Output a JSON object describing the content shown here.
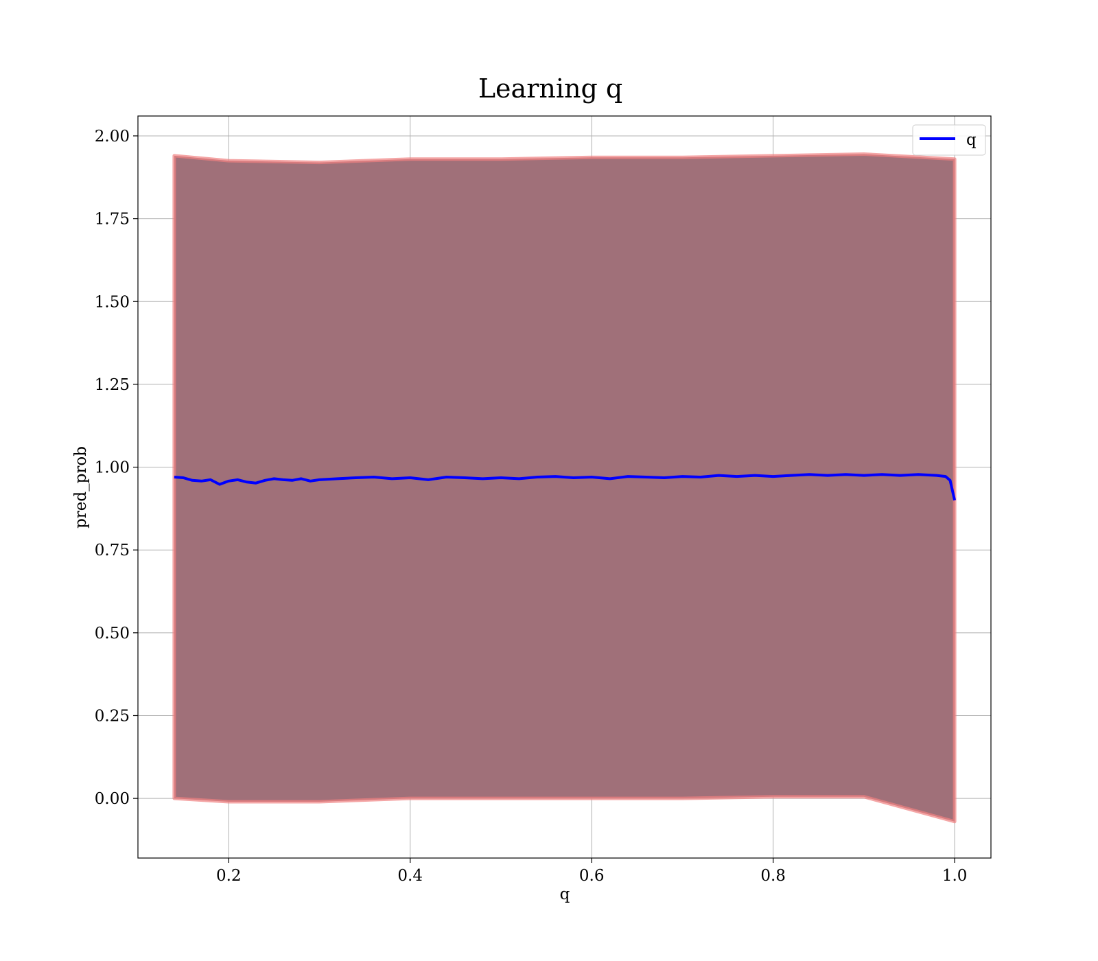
{
  "chart_data": {
    "type": "line",
    "title": "Learning q",
    "xlabel": "q",
    "ylabel": "pred_prob",
    "xlim": [
      0.1,
      1.04
    ],
    "ylim": [
      -0.18,
      2.06
    ],
    "xticks": [
      0.2,
      0.4,
      0.6,
      0.8,
      1.0
    ],
    "xtick_labels": [
      "0.2",
      "0.4",
      "0.6",
      "0.8",
      "1.0"
    ],
    "yticks": [
      0.0,
      0.25,
      0.5,
      0.75,
      1.0,
      1.25,
      1.5,
      1.75,
      2.0
    ],
    "ytick_labels": [
      "0.00",
      "0.25",
      "0.50",
      "0.75",
      "1.00",
      "1.25",
      "1.50",
      "1.75",
      "2.00"
    ],
    "grid": true,
    "legend": {
      "placement": "top-right",
      "entries": [
        {
          "label": "q",
          "color": "#0000ff"
        }
      ]
    },
    "series": [
      {
        "name": "q",
        "color": "#0000ff",
        "x": [
          0.14,
          0.15,
          0.16,
          0.17,
          0.18,
          0.19,
          0.2,
          0.21,
          0.22,
          0.23,
          0.24,
          0.25,
          0.26,
          0.27,
          0.28,
          0.29,
          0.3,
          0.32,
          0.34,
          0.36,
          0.38,
          0.4,
          0.42,
          0.44,
          0.46,
          0.48,
          0.5,
          0.52,
          0.54,
          0.56,
          0.58,
          0.6,
          0.62,
          0.64,
          0.66,
          0.68,
          0.7,
          0.72,
          0.74,
          0.76,
          0.78,
          0.8,
          0.82,
          0.84,
          0.86,
          0.88,
          0.9,
          0.92,
          0.94,
          0.96,
          0.98,
          0.99,
          0.995,
          1.0
        ],
        "y": [
          0.97,
          0.968,
          0.96,
          0.958,
          0.962,
          0.948,
          0.958,
          0.962,
          0.955,
          0.952,
          0.96,
          0.965,
          0.962,
          0.96,
          0.965,
          0.958,
          0.962,
          0.965,
          0.968,
          0.97,
          0.965,
          0.968,
          0.962,
          0.97,
          0.968,
          0.965,
          0.968,
          0.965,
          0.97,
          0.972,
          0.968,
          0.97,
          0.965,
          0.972,
          0.97,
          0.968,
          0.972,
          0.97,
          0.975,
          0.972,
          0.975,
          0.972,
          0.975,
          0.978,
          0.975,
          0.978,
          0.975,
          0.978,
          0.975,
          0.978,
          0.975,
          0.972,
          0.96,
          0.9
        ]
      }
    ],
    "bands": [
      {
        "color": "#a07079",
        "edge_color": "#f08080",
        "x": [
          0.14,
          0.2,
          0.3,
          0.4,
          0.5,
          0.6,
          0.7,
          0.8,
          0.9,
          1.0
        ],
        "upper": [
          1.94,
          1.925,
          1.92,
          1.93,
          1.93,
          1.935,
          1.935,
          1.94,
          1.945,
          1.93
        ],
        "lower": [
          0.0,
          -0.01,
          -0.01,
          0.0,
          0.0,
          0.0,
          0.0,
          0.005,
          0.005,
          -0.07
        ]
      }
    ]
  }
}
